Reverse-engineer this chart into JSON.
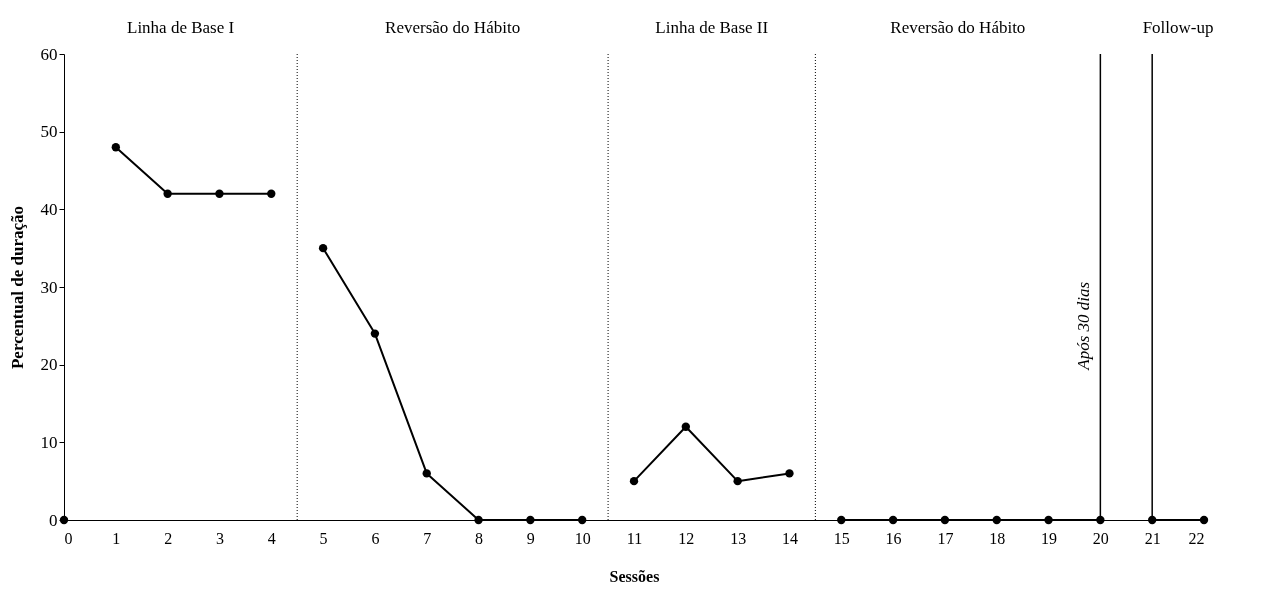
{
  "chart_data": {
    "type": "line",
    "xlabel": "Sessões",
    "ylabel": "Percentual de duração",
    "xlim": [
      0,
      22
    ],
    "xticks": [
      0,
      1,
      2,
      3,
      4,
      5,
      6,
      7,
      8,
      9,
      10,
      11,
      12,
      13,
      14,
      15,
      16,
      17,
      18,
      19,
      20,
      21,
      22
    ],
    "ylim": [
      0,
      60
    ],
    "yticks": [
      0,
      10,
      20,
      30,
      40,
      50,
      60
    ],
    "marker": "circle",
    "line_style": "solid",
    "series": [
      {
        "color": "#000000",
        "x": [
          0
        ],
        "values": [
          0
        ]
      },
      {
        "color": "#000000",
        "x": [
          1,
          2,
          3,
          4
        ],
        "values": [
          48,
          42,
          42,
          42
        ]
      },
      {
        "color": "#000000",
        "x": [
          5,
          6,
          7,
          8,
          9,
          10
        ],
        "values": [
          35,
          24,
          6,
          0,
          0,
          0
        ]
      },
      {
        "color": "#000000",
        "x": [
          11,
          12,
          13,
          14
        ],
        "values": [
          5,
          12,
          5,
          6
        ]
      },
      {
        "color": "#000000",
        "x": [
          15,
          16,
          17,
          18,
          19,
          20
        ],
        "values": [
          0,
          0,
          0,
          0,
          0,
          0
        ]
      },
      {
        "color": "#000000",
        "x": [
          21,
          22
        ],
        "values": [
          0,
          0
        ]
      }
    ],
    "ref_lines": [
      {
        "axis": "x",
        "value": 4.5,
        "line_style": "dotted"
      },
      {
        "axis": "x",
        "value": 10.5,
        "line_style": "dotted"
      },
      {
        "axis": "x",
        "value": 14.5,
        "line_style": "dotted"
      },
      {
        "axis": "x",
        "value": 20,
        "line_style": "solid"
      },
      {
        "axis": "x",
        "value": 21,
        "line_style": "solid"
      }
    ],
    "annotations": [
      "Linha de Base I",
      "Reversão do Hábito",
      "Linha de Base II",
      "Reversão do Hábito",
      "Follow-up",
      {
        "text": "Após 30 dias",
        "x": 20,
        "y": 25
      }
    ]
  }
}
